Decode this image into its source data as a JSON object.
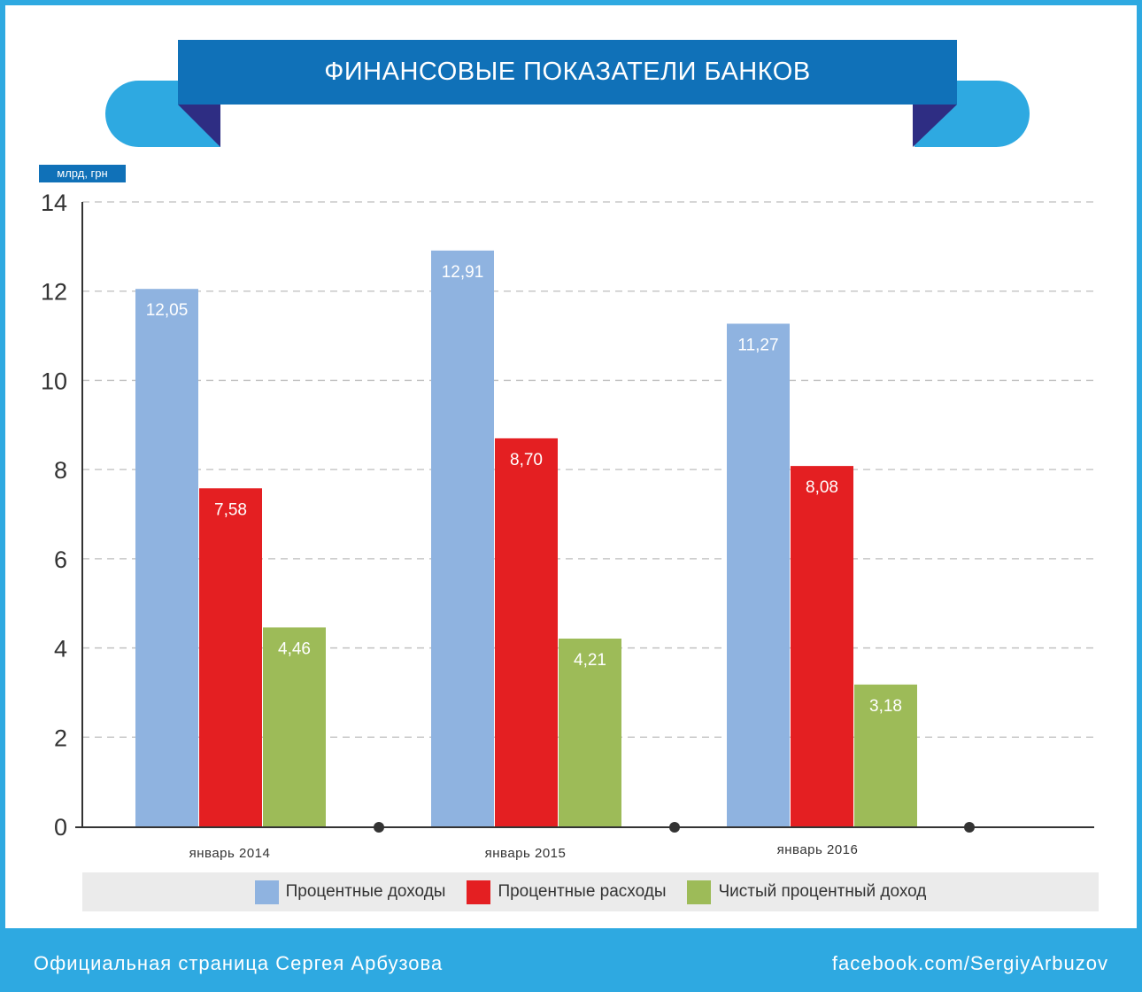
{
  "title": "ФИНАНСОВЫЕ ПОКАЗАТЕЛИ БАНКОВ",
  "unit": "млрд, грн",
  "footer": {
    "left": "Официальная страница Сергея Арбузова",
    "right": "facebook.com/SergiyArbuzov"
  },
  "chart_data": {
    "type": "bar",
    "title": "ФИНАНСОВЫЕ ПОКАЗАТЕЛИ БАНКОВ",
    "ylabel": "млрд, грн",
    "ylim": [
      0,
      14
    ],
    "yticks": [
      "0",
      "2",
      "4",
      "6",
      "8",
      "10",
      "12",
      "14"
    ],
    "categories": [
      "январь 2014",
      "январь 2015",
      "январь 2016"
    ],
    "series": [
      {
        "name": "Процентные доходы",
        "color": "#8fb3e0",
        "values": [
          12.05,
          12.91,
          11.27
        ],
        "labels": [
          "12,05",
          "12,91",
          "11,27"
        ]
      },
      {
        "name": "Процентные расходы",
        "color": "#e41f22",
        "values": [
          7.58,
          8.7,
          8.08
        ],
        "labels": [
          "7,58",
          "8,70",
          "8,08"
        ]
      },
      {
        "name": "Чистый процентный доход",
        "color": "#9dbb58",
        "values": [
          4.46,
          4.21,
          3.18
        ],
        "labels": [
          "4,46",
          "4,21",
          "3,18"
        ]
      }
    ],
    "grid": true,
    "legend": "bottom"
  }
}
